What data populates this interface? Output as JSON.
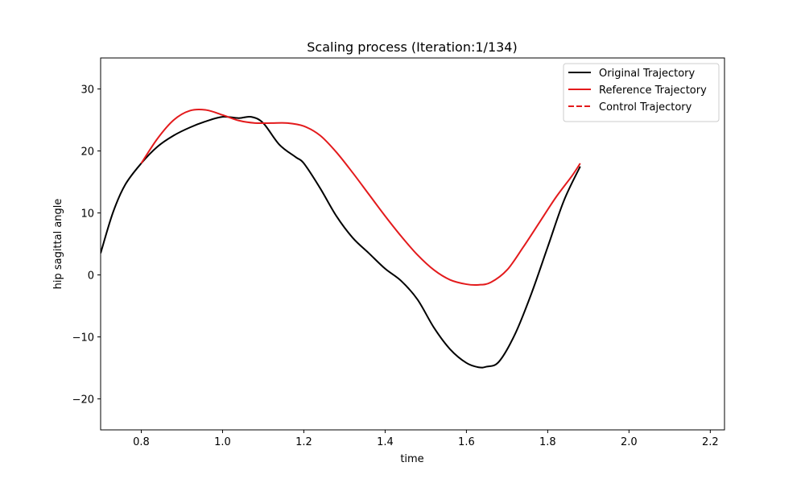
{
  "chart_data": {
    "type": "line",
    "title": "Scaling process (Iteration:1/134)",
    "xlabel": "time",
    "ylabel": "hip sagittal angle",
    "xlim": [
      0.7,
      2.235
    ],
    "ylim": [
      -25,
      35
    ],
    "xticks": [
      0.8,
      1.0,
      1.2,
      1.4,
      1.6,
      1.8,
      2.0,
      2.2
    ],
    "yticks": [
      -20,
      -10,
      0,
      10,
      20,
      30
    ],
    "grid": false,
    "legend_position": "top-right",
    "series": [
      {
        "name": "Original Trajectory",
        "color": "#000000",
        "dash": "solid",
        "x": [
          0.7,
          0.73,
          0.76,
          0.8,
          0.84,
          0.88,
          0.92,
          0.96,
          1.0,
          1.04,
          1.07,
          1.1,
          1.14,
          1.18,
          1.2,
          1.24,
          1.28,
          1.32,
          1.36,
          1.4,
          1.44,
          1.48,
          1.52,
          1.56,
          1.6,
          1.63,
          1.65,
          1.68,
          1.72,
          1.76,
          1.8,
          1.84,
          1.88
        ],
        "y": [
          3.5,
          10.0,
          14.5,
          18.0,
          20.7,
          22.5,
          23.8,
          24.8,
          25.5,
          25.3,
          25.5,
          24.5,
          21.0,
          19.0,
          18.0,
          14.0,
          9.5,
          6.0,
          3.5,
          1.0,
          -1.0,
          -4.0,
          -8.5,
          -12.0,
          -14.2,
          -14.9,
          -14.8,
          -14.0,
          -9.5,
          -3.0,
          4.5,
          12.0,
          17.5
        ]
      },
      {
        "name": "Reference Trajectory",
        "color": "#e31a1c",
        "dash": "solid",
        "x": [
          0.8,
          0.84,
          0.88,
          0.92,
          0.96,
          1.0,
          1.04,
          1.08,
          1.12,
          1.16,
          1.2,
          1.24,
          1.28,
          1.32,
          1.36,
          1.4,
          1.44,
          1.48,
          1.52,
          1.56,
          1.6,
          1.63,
          1.66,
          1.7,
          1.74,
          1.78,
          1.82,
          1.86,
          1.88
        ],
        "y": [
          18.0,
          22.0,
          25.0,
          26.5,
          26.6,
          25.8,
          24.9,
          24.5,
          24.5,
          24.5,
          24.0,
          22.5,
          19.8,
          16.5,
          13.0,
          9.5,
          6.2,
          3.2,
          0.8,
          -0.8,
          -1.5,
          -1.6,
          -1.2,
          0.8,
          4.5,
          8.5,
          12.5,
          16.0,
          18.0
        ]
      },
      {
        "name": "Control Trajectory",
        "color": "#e31a1c",
        "dash": "dashed",
        "x": [],
        "y": []
      }
    ]
  }
}
